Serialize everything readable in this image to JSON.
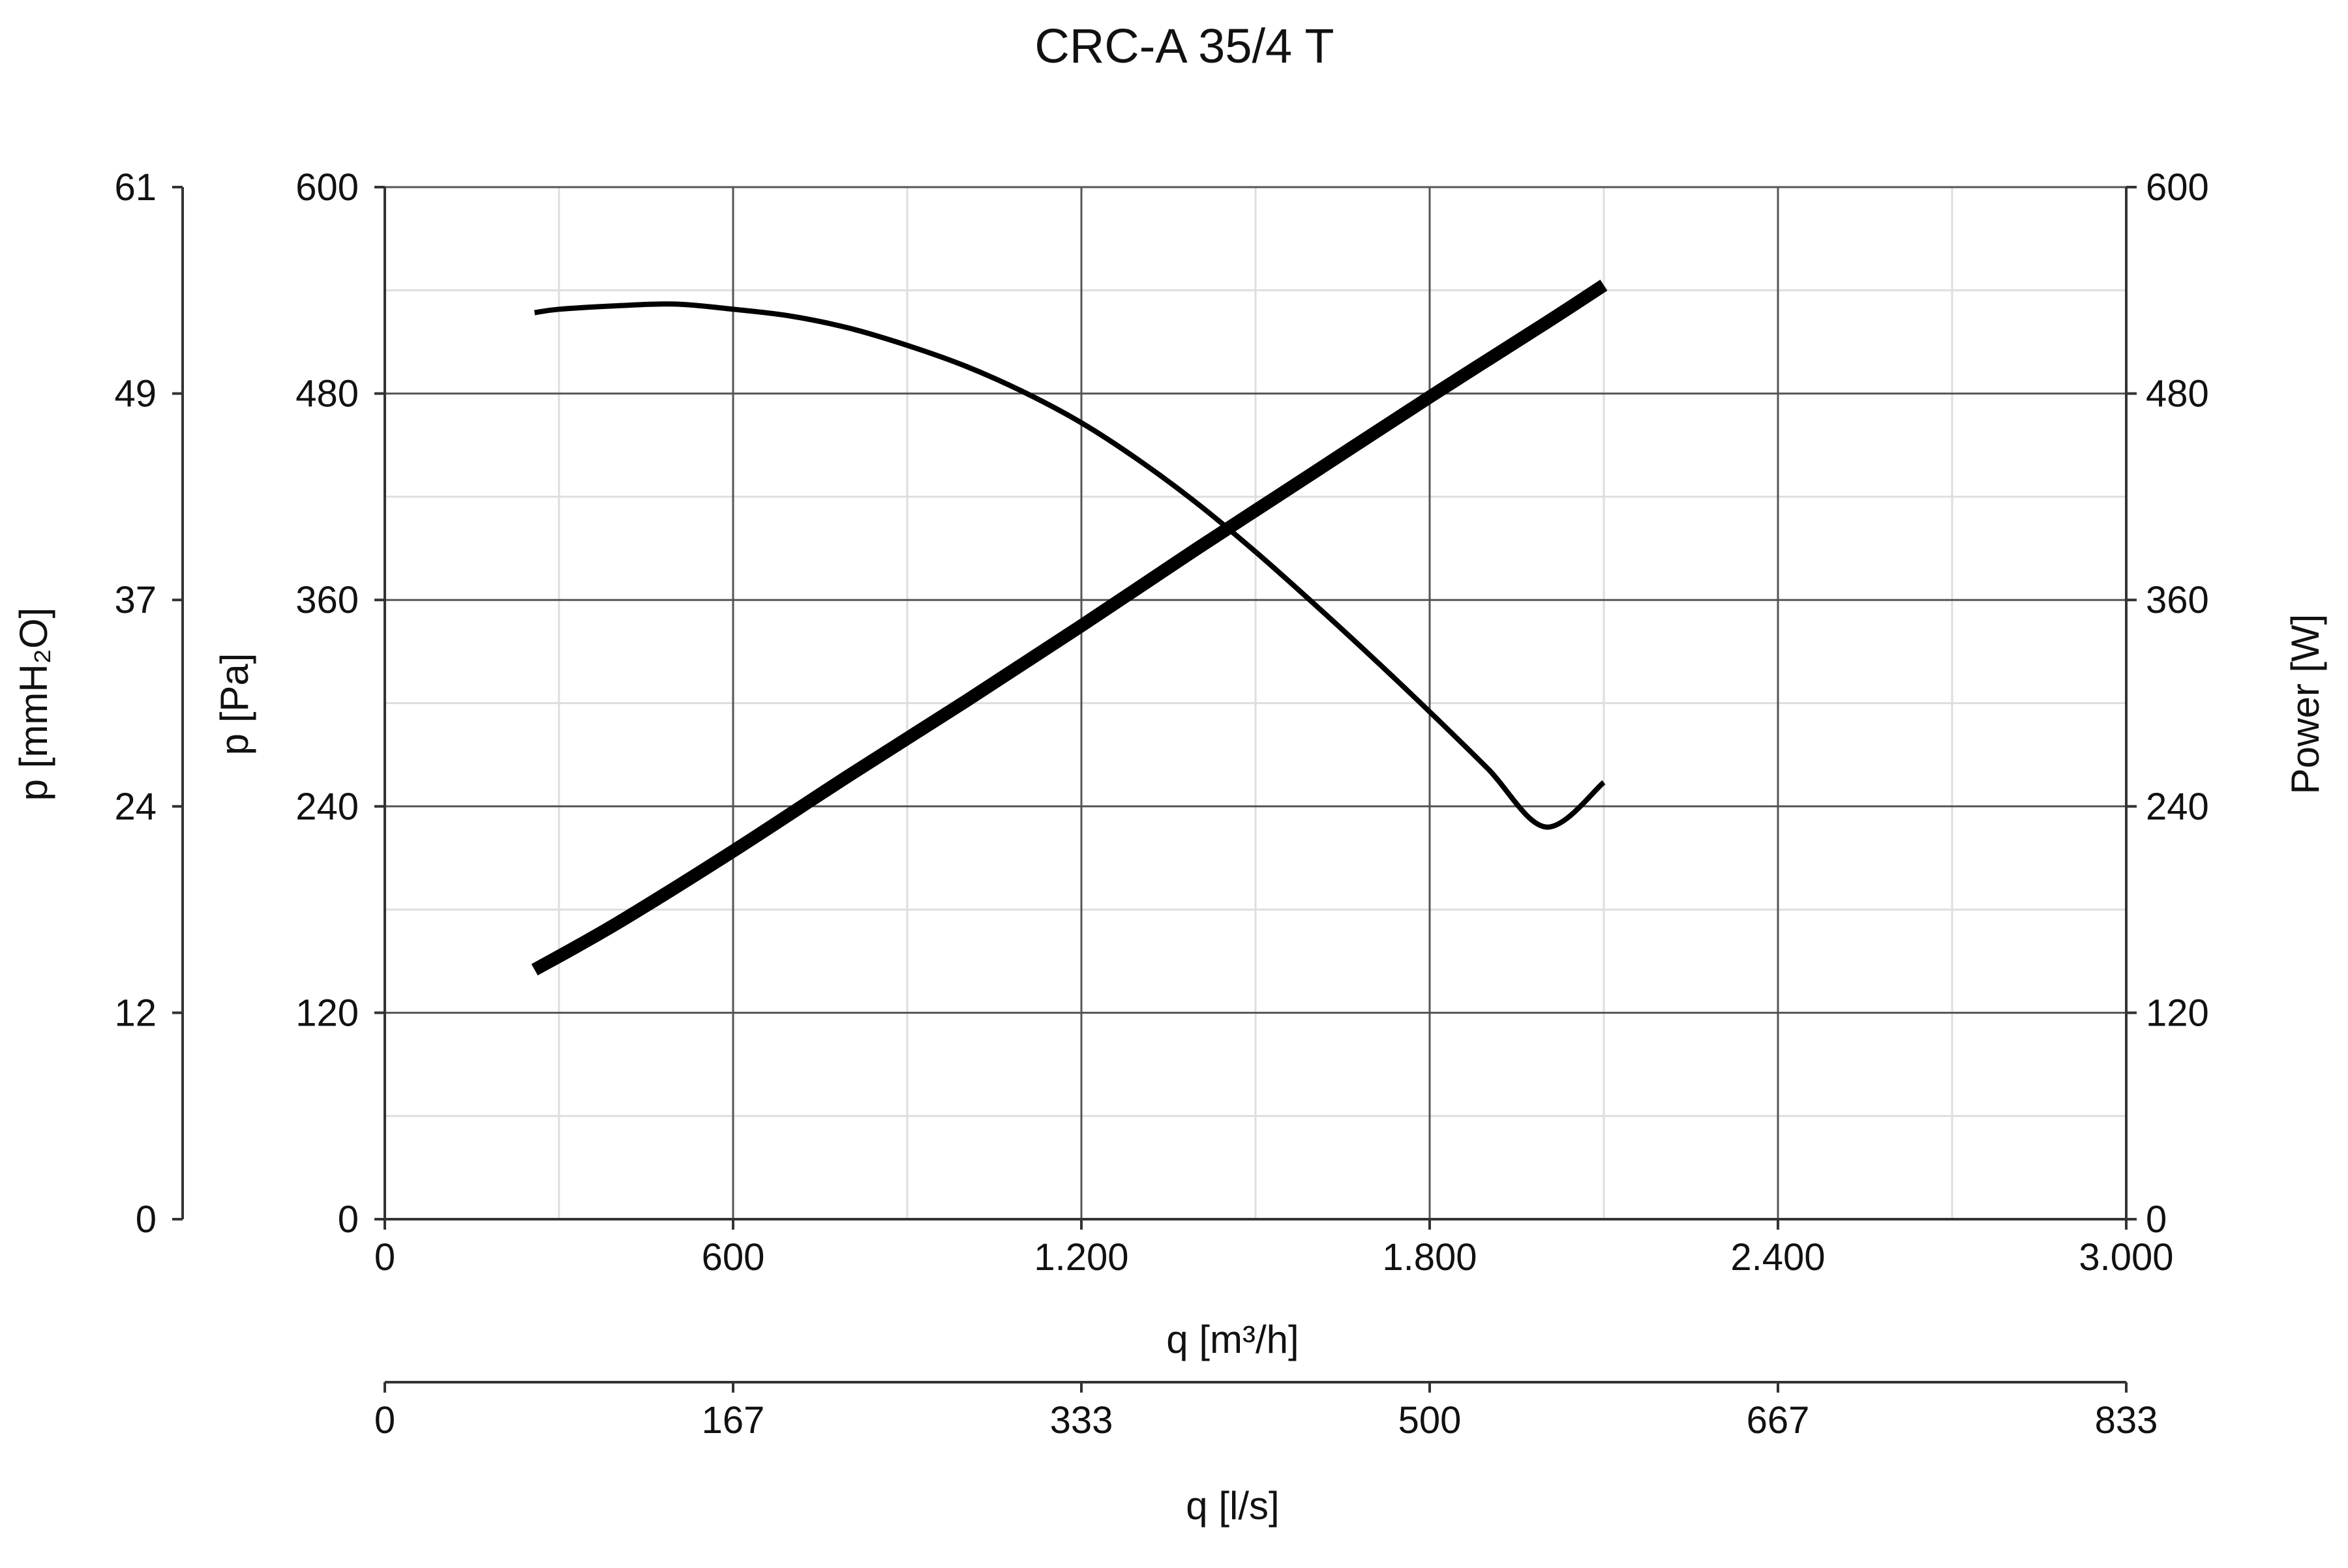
{
  "chart_data": {
    "type": "line",
    "title": "CRC-A 35/4 T",
    "x_axis": {
      "label": "q [m³/h]",
      "range": [
        0,
        3000
      ],
      "ticks": [
        0,
        600,
        1200,
        1800,
        2400,
        3000
      ],
      "tick_labels": [
        "0",
        "600",
        "1.200",
        "1.800",
        "2.400",
        "3.000"
      ]
    },
    "x2_axis": {
      "label": "q [l/s]",
      "range": [
        0,
        833
      ],
      "tick_labels": [
        "0",
        "167",
        "333",
        "500",
        "667",
        "833"
      ]
    },
    "y_axis": {
      "label": "p [Pa]",
      "range": [
        0,
        600
      ],
      "ticks": [
        0,
        120,
        240,
        360,
        480,
        600
      ],
      "tick_labels": [
        "0",
        "120",
        "240",
        "360",
        "480",
        "600"
      ]
    },
    "y2_axis": {
      "label": "p [mmH₂O]",
      "range": [
        0,
        61
      ],
      "tick_labels": [
        "0",
        "12",
        "24",
        "37",
        "49",
        "61"
      ]
    },
    "y3_axis": {
      "label": "Power [W]",
      "range": [
        0,
        600
      ],
      "tick_labels": [
        "0",
        "120",
        "240",
        "360",
        "480",
        "600"
      ]
    },
    "grid": true,
    "legend": "none",
    "series": [
      {
        "axis": "p [Pa]",
        "color": "#000000",
        "x": [
          258,
          300,
          400,
          500,
          600,
          700,
          800,
          900,
          1000,
          1100,
          1200,
          1300,
          1400,
          1500,
          1600,
          1700,
          1800,
          1900,
          2000,
          2100
        ],
        "y": [
          527,
          529,
          531,
          532,
          529,
          525,
          518,
          508,
          496,
          481,
          463,
          441,
          416,
          388,
          358,
          327,
          295,
          262,
          228,
          254
        ]
      },
      {
        "axis": "Power [W]",
        "color": "#000000",
        "x": [
          258,
          400,
          600,
          800,
          1000,
          1200,
          1400,
          1600,
          1800,
          2000,
          2100
        ],
        "y": [
          145,
          172,
          214,
          258,
          301,
          345,
          390,
          434,
          478,
          521,
          543
        ]
      }
    ]
  }
}
